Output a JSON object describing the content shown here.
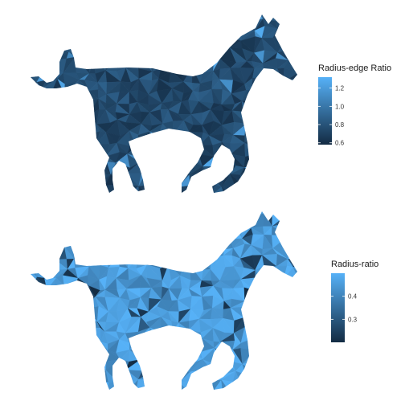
{
  "colors": {
    "low": "#132b43",
    "high": "#56b1f7",
    "background": "#ffffff"
  },
  "chart_data": [
    {
      "type": "heatmap",
      "subject": "horse silhouette triangle mesh",
      "fill_variable": "Radius-edge Ratio",
      "scale": {
        "low_color": "#132b43",
        "high_color": "#56b1f7",
        "limits": [
          0.58,
          1.32
        ]
      },
      "legend": {
        "title": "Radius-edge Ratio",
        "ticks": [
          0.6,
          0.8,
          1.0,
          1.2
        ],
        "tick_labels": [
          "0.6",
          "0.8",
          "1.0",
          "1.2"
        ],
        "placement": "right"
      },
      "grid": false,
      "axes": false
    },
    {
      "type": "heatmap",
      "subject": "horse silhouette triangle mesh",
      "fill_variable": "Radius-ratio",
      "scale": {
        "low_color": "#132b43",
        "high_color": "#56b1f7",
        "limits": [
          0.2,
          0.5
        ]
      },
      "legend": {
        "title": "Radius-ratio",
        "ticks": [
          0.3,
          0.4
        ],
        "tick_labels": [
          "0.3",
          "0.4"
        ],
        "placement": "right"
      },
      "grid": false,
      "axes": false
    }
  ]
}
